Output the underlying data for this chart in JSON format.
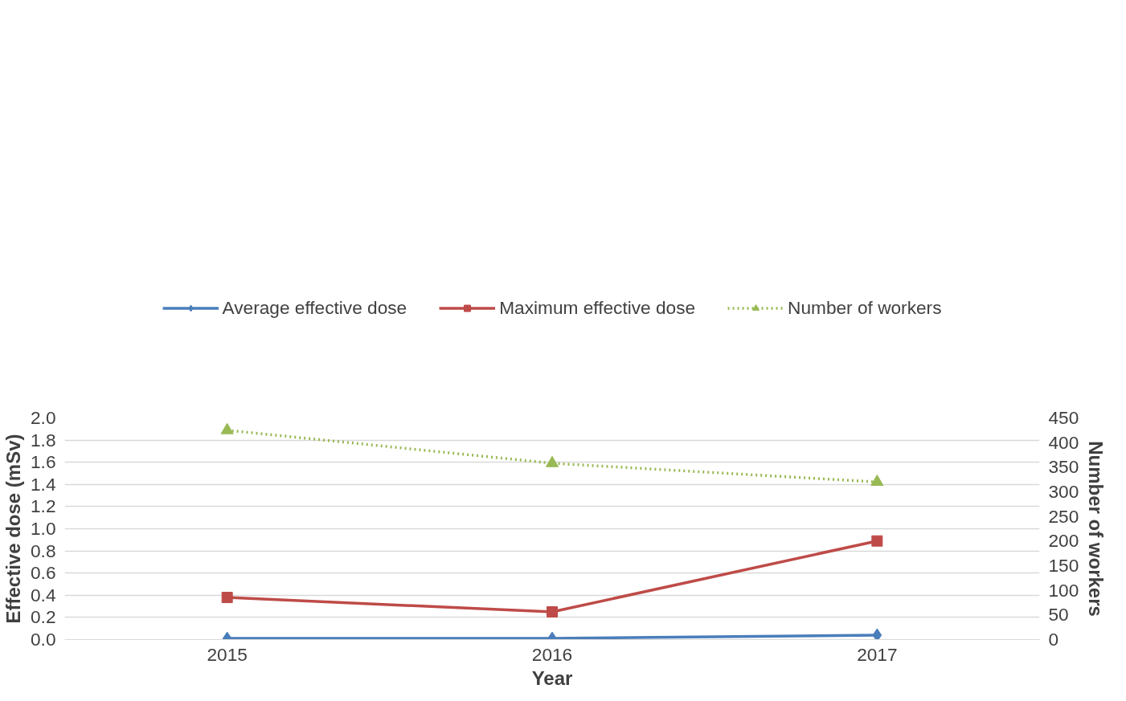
{
  "chart_data": {
    "type": "line",
    "xlabel": "Year",
    "ylabel": "Effective dose (mSv)",
    "y2label": "Number of workers",
    "categories": [
      "2015",
      "2016",
      "2017"
    ],
    "series": [
      {
        "name": "Average effective dose",
        "color": "#4a7ebb",
        "values": [
          0.01,
          0.01,
          0.04
        ],
        "marker": "diamond",
        "line_style": "solid"
      },
      {
        "name": "Maximum effective dose",
        "color": "#be4b48",
        "values": [
          0.38,
          0.25,
          0.89
        ],
        "marker": "square",
        "line_style": "solid"
      },
      {
        "name": "Number of workers",
        "color": "#98b954",
        "values": [
          425,
          358,
          320
        ],
        "marker": "triangle",
        "line_style": "dotted",
        "axis": "y2"
      }
    ],
    "ylim": [
      0,
      2.0
    ],
    "yticks": [
      {
        "value": 0,
        "label": "0.0"
      },
      0.2,
      0.4,
      0.6,
      0.8,
      {
        "value": 1,
        "label": "1.0"
      },
      1.2,
      1.4,
      1.6,
      1.8,
      {
        "value": 2,
        "label": "2.0"
      }
    ],
    "y2lim": [
      0,
      450
    ],
    "y2ticks": [
      0,
      50,
      100,
      150,
      200,
      250,
      300,
      350,
      400,
      450
    ],
    "grid": "y",
    "legend": "top"
  }
}
